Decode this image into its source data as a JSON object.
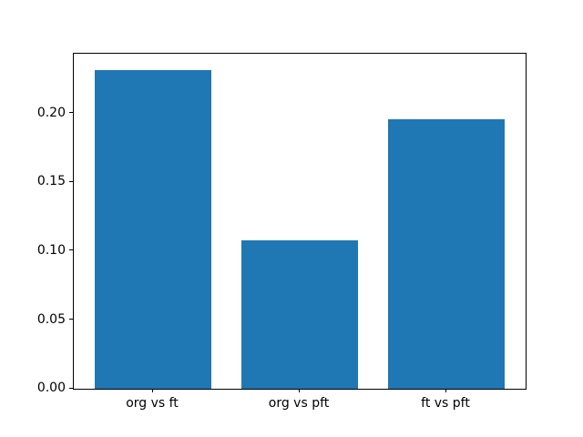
{
  "figure": {
    "background": "#ffffff"
  },
  "chart_data": {
    "type": "bar",
    "title": "",
    "xlabel": "",
    "ylabel": "",
    "categories": [
      "org vs ft",
      "org vs pft",
      "ft vs pft"
    ],
    "values": [
      0.232,
      0.108,
      0.196
    ],
    "bar_color": "#1f77b4",
    "bar_width": 0.8,
    "xlim": [
      -0.54,
      2.54
    ],
    "ylim": [
      0,
      0.2436
    ],
    "yticks": [
      0.0,
      0.05,
      0.1,
      0.15,
      0.2
    ],
    "ytick_labels": [
      "0.00",
      "0.05",
      "0.10",
      "0.15",
      "0.20"
    ],
    "grid": false,
    "legend": null
  }
}
